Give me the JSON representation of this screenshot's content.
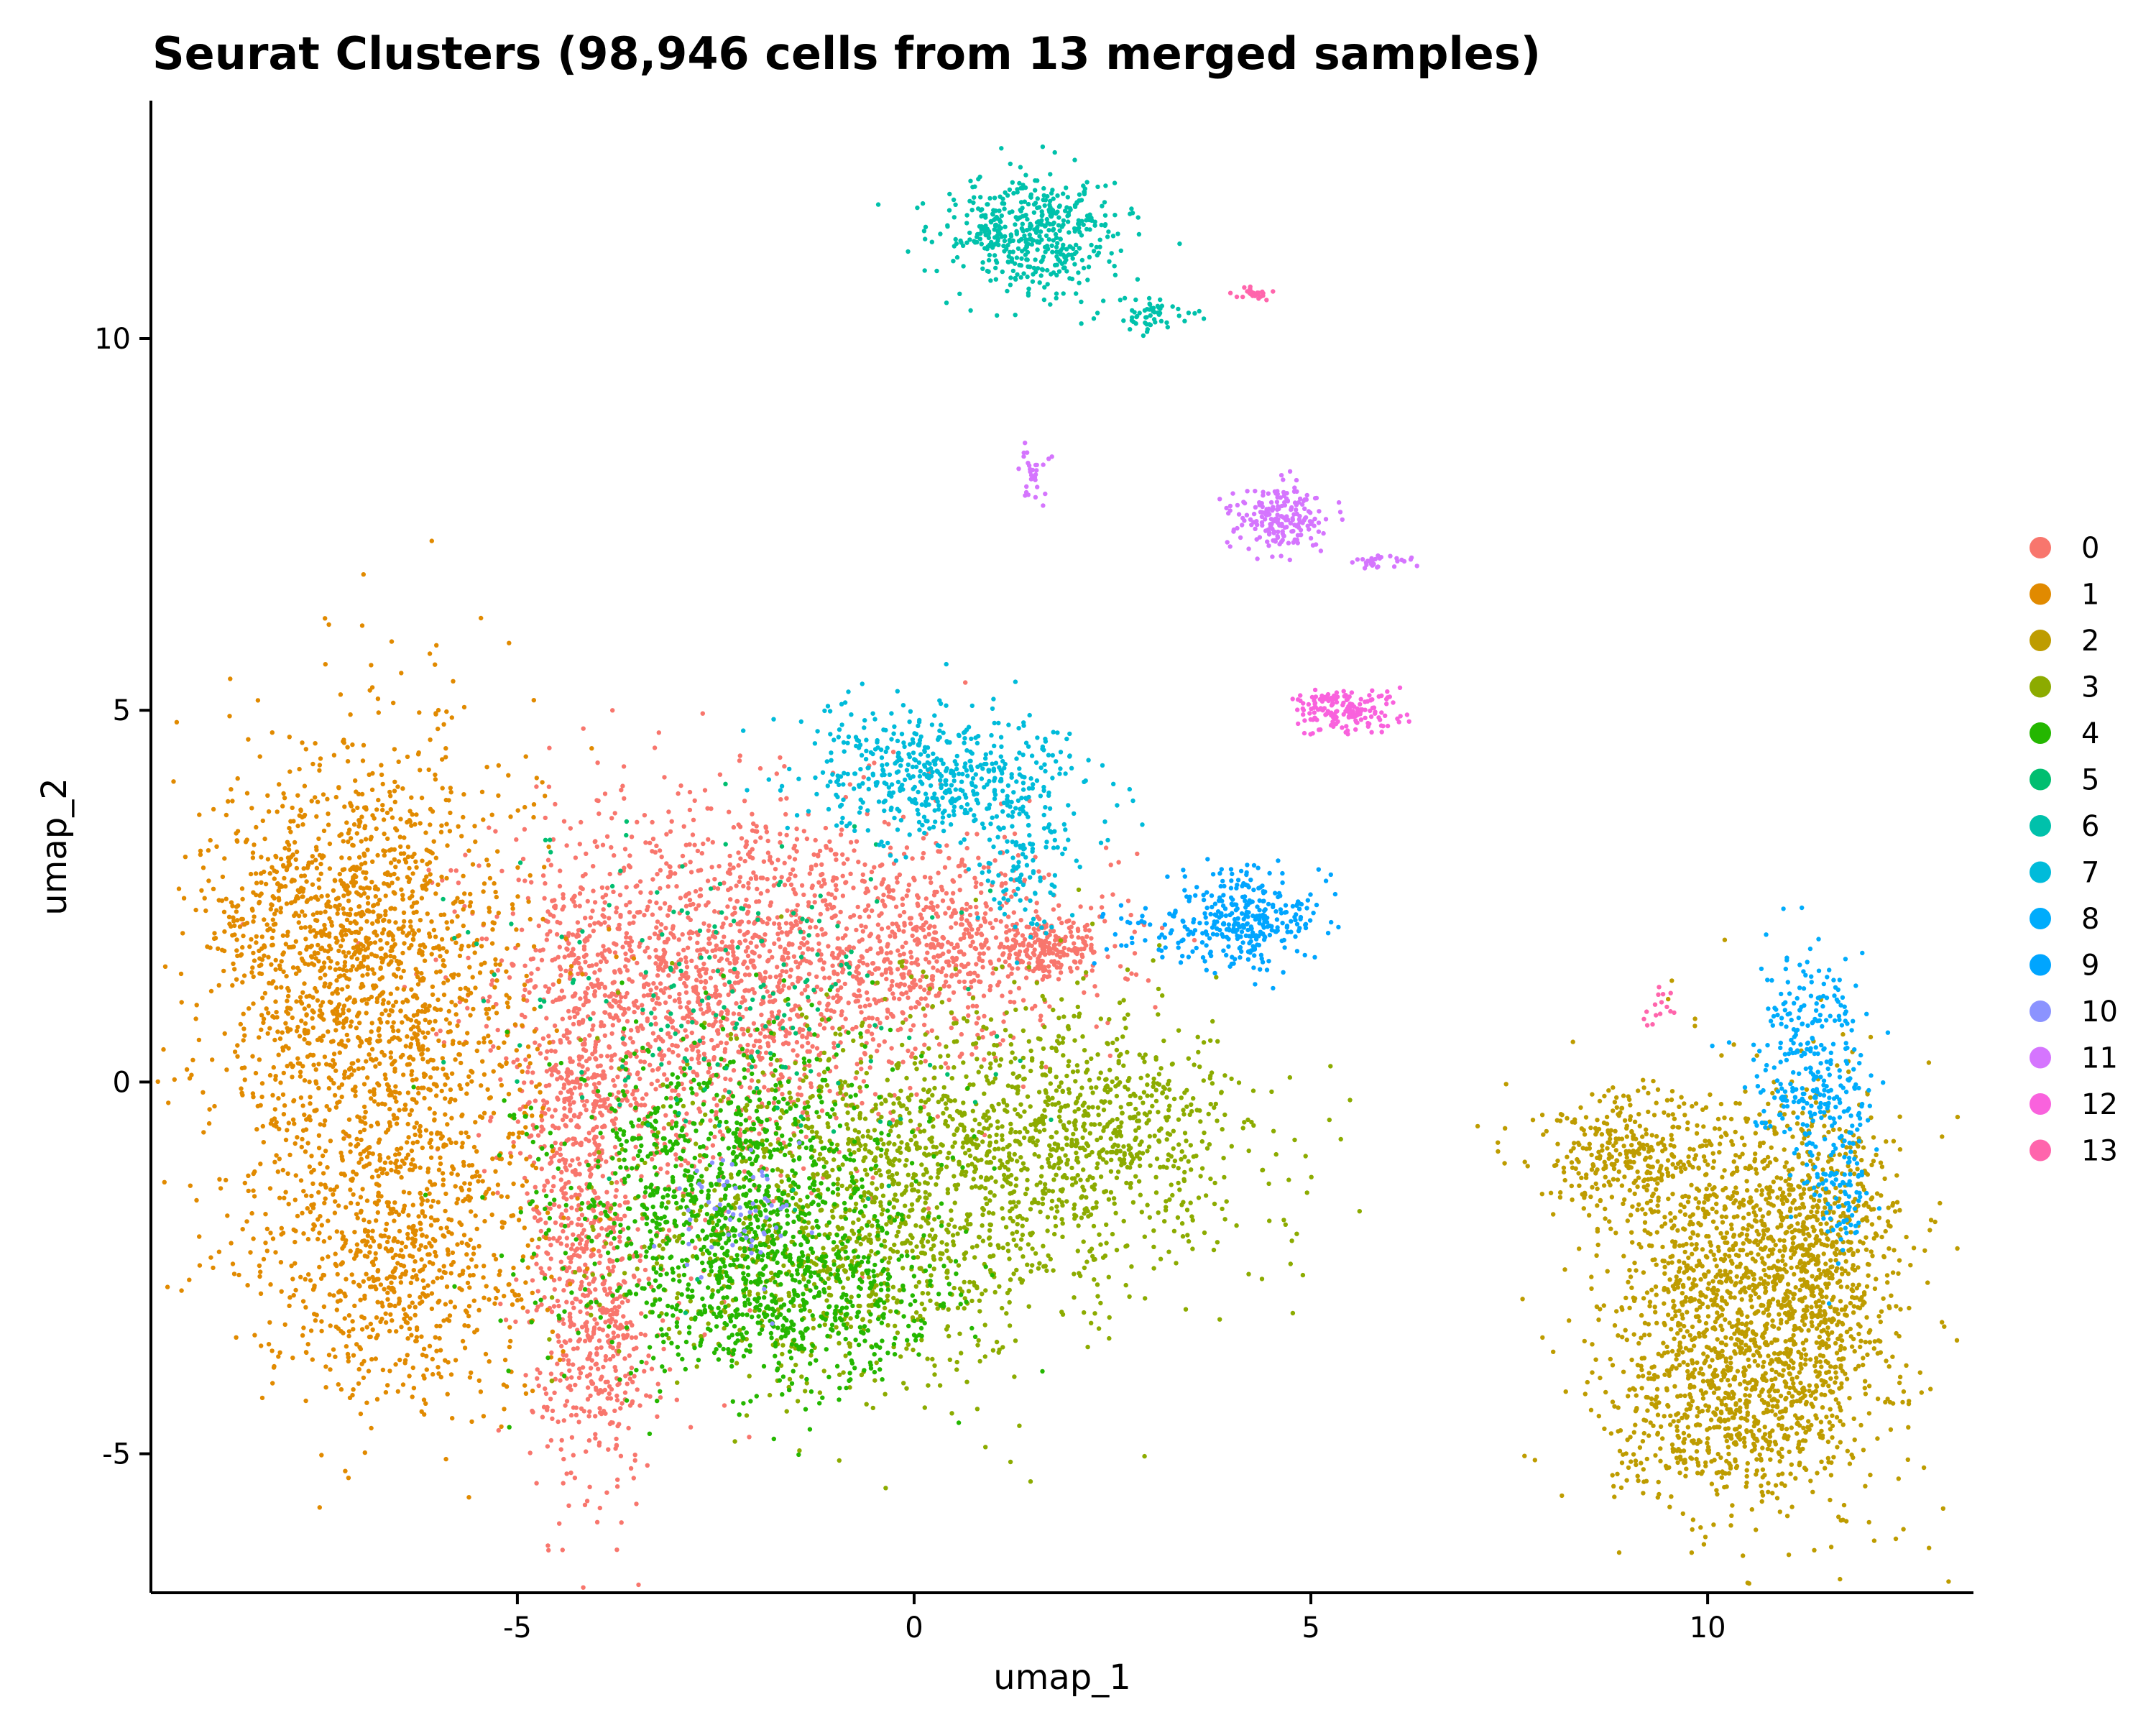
{
  "chart_data": {
    "type": "scatter",
    "title": "Seurat Clusters (98,946 cells from 13 merged samples)",
    "xlabel": "umap_1",
    "ylabel": "umap_2",
    "xlim": [
      -9.6,
      13.35
    ],
    "ylim": [
      -6.85,
      13.2
    ],
    "x_ticks": [
      -5,
      0,
      5,
      10
    ],
    "y_ticks": [
      -5,
      0,
      5,
      10
    ],
    "x_tick_labels": [
      "-5",
      "0",
      "5",
      "10"
    ],
    "y_tick_labels": [
      "-5",
      "0",
      "5",
      "10"
    ],
    "grid": false,
    "legend_position": "right",
    "series": [
      {
        "name": "0",
        "color": "#F8766D",
        "blobs": [
          {
            "x": -2.0,
            "y": 1.6,
            "sx": 1.6,
            "sy": 1.1,
            "n": 1400
          },
          {
            "x": -4.2,
            "y": -1.0,
            "sx": 0.35,
            "sy": 2.0,
            "n": 700
          },
          {
            "x": -3.9,
            "y": -3.6,
            "sx": 0.35,
            "sy": 0.8,
            "n": 250
          },
          {
            "x": 0.5,
            "y": 1.8,
            "sx": 1.0,
            "sy": 0.6,
            "n": 450
          },
          {
            "x": 1.7,
            "y": 1.8,
            "sx": 0.35,
            "sy": 0.15,
            "n": 180
          },
          {
            "x": -3.0,
            "y": 0.5,
            "sx": 0.9,
            "sy": 1.5,
            "n": 500
          }
        ]
      },
      {
        "name": "1",
        "color": "#E18A00",
        "blobs": [
          {
            "x": -6.8,
            "y": 1.0,
            "sx": 1.0,
            "sy": 1.9,
            "n": 1700
          },
          {
            "x": -6.5,
            "y": -2.5,
            "sx": 0.9,
            "sy": 0.9,
            "n": 600
          },
          {
            "x": -7.5,
            "y": 2.3,
            "sx": 0.7,
            "sy": 0.7,
            "n": 300
          }
        ]
      },
      {
        "name": "2",
        "color": "#BE9C00",
        "blobs": [
          {
            "x": 10.6,
            "y": -3.0,
            "sx": 0.9,
            "sy": 1.3,
            "n": 1600
          },
          {
            "x": 11.4,
            "y": -2.2,
            "sx": 0.5,
            "sy": 1.0,
            "n": 400
          },
          {
            "x": 9.0,
            "y": -1.0,
            "sx": 0.6,
            "sy": 0.4,
            "n": 300
          },
          {
            "x": 10.2,
            "y": -4.6,
            "sx": 0.7,
            "sy": 0.5,
            "n": 300
          }
        ]
      },
      {
        "name": "3",
        "color": "#8CAB00",
        "blobs": [
          {
            "x": 0.8,
            "y": -1.0,
            "sx": 1.6,
            "sy": 1.1,
            "n": 1300
          },
          {
            "x": -1.0,
            "y": -2.4,
            "sx": 1.4,
            "sy": 0.9,
            "n": 600
          },
          {
            "x": 2.5,
            "y": -0.5,
            "sx": 0.8,
            "sy": 0.5,
            "n": 300
          }
        ]
      },
      {
        "name": "4",
        "color": "#24B700",
        "blobs": [
          {
            "x": -2.3,
            "y": -1.6,
            "sx": 1.1,
            "sy": 1.1,
            "n": 1100
          },
          {
            "x": -1.5,
            "y": -3.0,
            "sx": 1.0,
            "sy": 0.6,
            "n": 400
          }
        ]
      },
      {
        "name": "5",
        "color": "#00BE70",
        "blobs": [
          {
            "x": -2.3,
            "y": 1.0,
            "sx": 1.5,
            "sy": 1.2,
            "n": 200
          }
        ]
      },
      {
        "name": "6",
        "color": "#00C1AB",
        "blobs": [
          {
            "x": 1.5,
            "y": 11.4,
            "sx": 0.55,
            "sy": 0.4,
            "n": 500
          },
          {
            "x": 3.0,
            "y": 10.3,
            "sx": 0.3,
            "sy": 0.12,
            "n": 60
          }
        ]
      },
      {
        "name": "7",
        "color": "#00BBDA",
        "blobs": [
          {
            "x": 0.4,
            "y": 4.1,
            "sx": 0.9,
            "sy": 0.45,
            "n": 550
          },
          {
            "x": 1.4,
            "y": 3.0,
            "sx": 0.3,
            "sy": 0.5,
            "n": 100
          }
        ]
      },
      {
        "name": "8",
        "color": "#00ACFC",
        "blobs": [
          {
            "x": 11.3,
            "y": 0.2,
            "sx": 0.35,
            "sy": 0.7,
            "n": 300
          },
          {
            "x": 11.7,
            "y": -1.2,
            "sx": 0.2,
            "sy": 0.6,
            "n": 100
          }
        ]
      },
      {
        "name": "9",
        "color": "#00A5FF",
        "blobs": [
          {
            "x": 4.2,
            "y": 2.2,
            "sx": 0.4,
            "sy": 0.35,
            "n": 300
          },
          {
            "x": 3.2,
            "y": 2.0,
            "sx": 0.6,
            "sy": 0.2,
            "n": 60
          }
        ]
      },
      {
        "name": "10",
        "color": "#8B93FF",
        "blobs": [
          {
            "x": -2.2,
            "y": -1.8,
            "sx": 0.4,
            "sy": 0.4,
            "n": 60
          }
        ]
      },
      {
        "name": "11",
        "color": "#D575FE",
        "blobs": [
          {
            "x": 4.6,
            "y": 7.6,
            "sx": 0.3,
            "sy": 0.22,
            "n": 200
          },
          {
            "x": 5.9,
            "y": 7.0,
            "sx": 0.2,
            "sy": 0.05,
            "n": 30
          },
          {
            "x": 1.5,
            "y": 8.2,
            "sx": 0.1,
            "sy": 0.2,
            "n": 30
          }
        ]
      },
      {
        "name": "12",
        "color": "#F962DD",
        "blobs": [
          {
            "x": 5.4,
            "y": 5.0,
            "sx": 0.35,
            "sy": 0.15,
            "n": 180
          }
        ]
      },
      {
        "name": "13",
        "color": "#FF65AC",
        "blobs": [
          {
            "x": 4.3,
            "y": 10.6,
            "sx": 0.15,
            "sy": 0.05,
            "n": 25
          },
          {
            "x": 9.4,
            "y": 1.0,
            "sx": 0.1,
            "sy": 0.15,
            "n": 15
          }
        ]
      }
    ]
  }
}
